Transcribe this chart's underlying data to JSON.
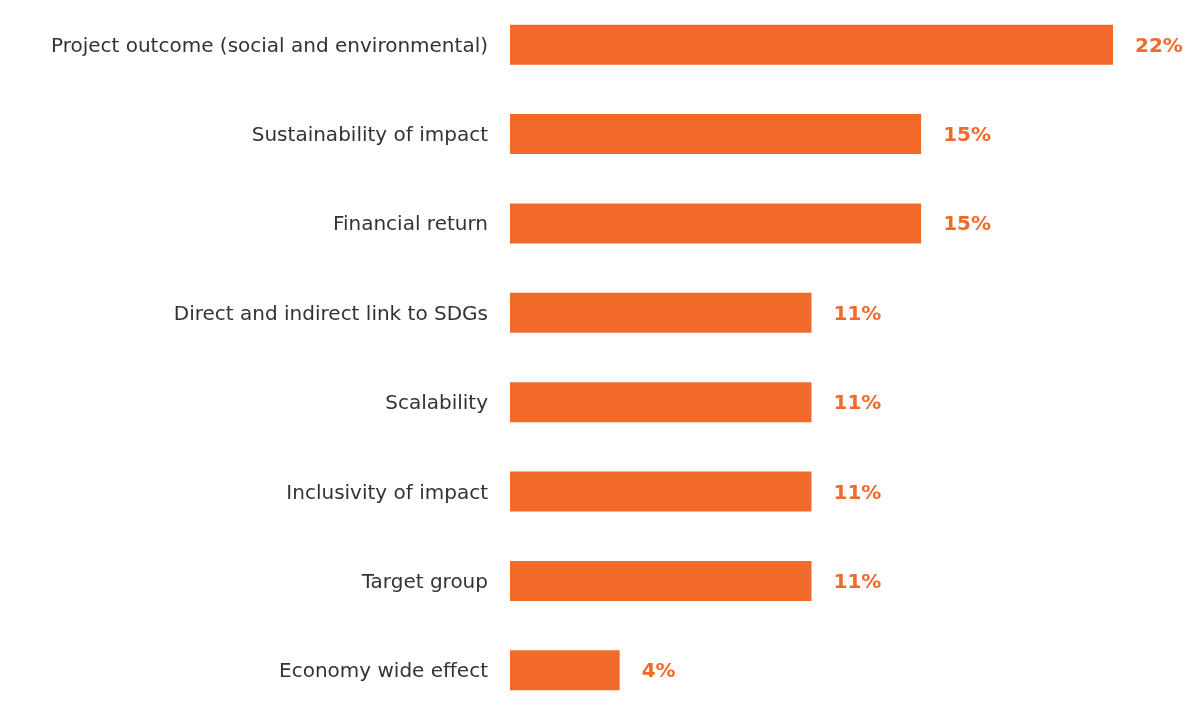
{
  "chart_data": {
    "type": "bar",
    "orientation": "horizontal",
    "categories": [
      "Project outcome (social and environmental)",
      "Sustainability of impact",
      "Financial return",
      "Direct and indirect link to SDGs",
      "Scalability",
      "Inclusivity of impact",
      "Target group",
      "Economy wide effect"
    ],
    "values": [
      22,
      15,
      15,
      11,
      11,
      11,
      11,
      4
    ],
    "value_labels": [
      "22%",
      "15%",
      "15%",
      "11%",
      "11%",
      "11%",
      "11%",
      "4%"
    ],
    "color": "#f26a2a"
  }
}
